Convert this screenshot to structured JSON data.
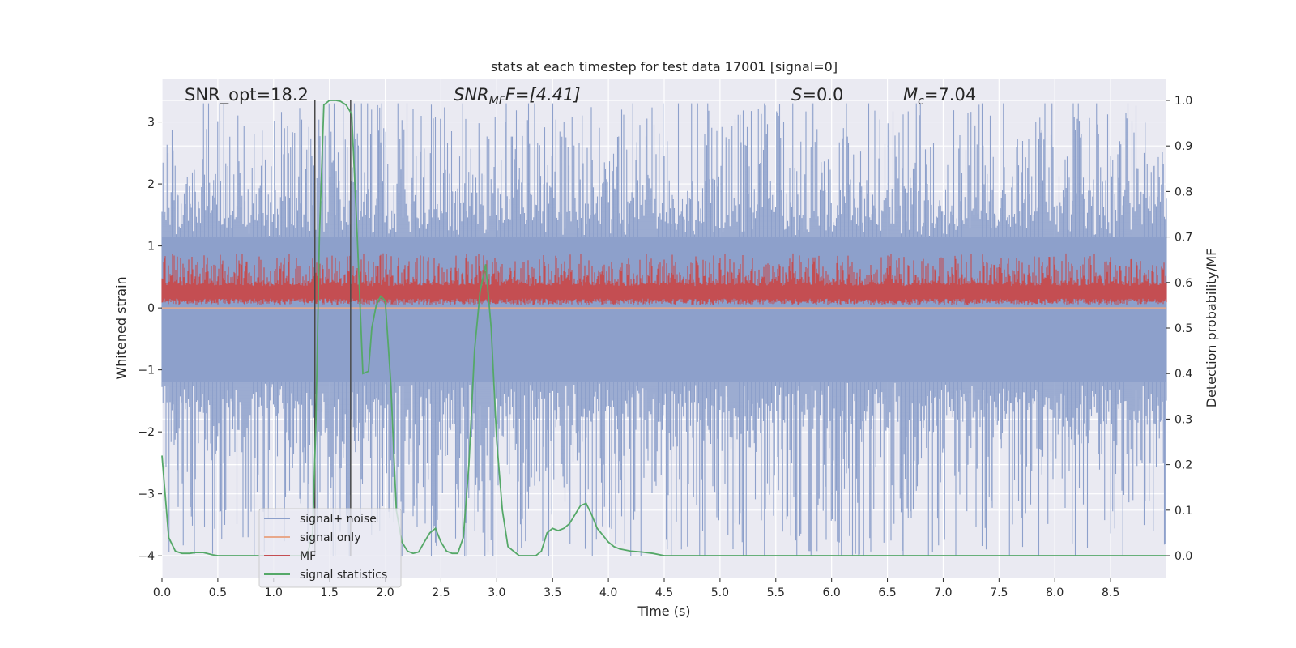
{
  "chart_data": {
    "type": "line",
    "title": "stats at each timestep for test data 17001 [signal=0]",
    "xlabel": "Time (s)",
    "ylabel": "Whitened strain",
    "y2label": "Detection probability/MF",
    "xlim": [
      0,
      9
    ],
    "ylim": [
      -4.35,
      3.7
    ],
    "y2lim": [
      -0.048,
      1.048
    ],
    "x_ticks": [
      "0.0",
      "0.5",
      "1.0",
      "1.5",
      "2.0",
      "2.5",
      "3.0",
      "3.5",
      "4.0",
      "4.5",
      "5.0",
      "5.5",
      "6.0",
      "6.5",
      "7.0",
      "7.5",
      "8.0",
      "8.5"
    ],
    "y_ticks": [
      "3",
      "2",
      "1",
      "0",
      "−1",
      "−2",
      "−3",
      "−4"
    ],
    "y2_ticks": [
      "1.0",
      "0.9",
      "0.8",
      "0.7",
      "0.6",
      "0.5",
      "0.4",
      "0.3",
      "0.2",
      "0.1",
      "0.0"
    ],
    "grid": true,
    "legend_position": "lower-left",
    "annotations": {
      "snr_opt": "SNR_opt=18.2",
      "snr_mf_main": "SNR",
      "snr_mf_sub": "MF",
      "snr_mf_rest": "F=[4.41]",
      "s_main": "S",
      "s_rest": "=0.0",
      "mc_main": "M",
      "mc_sub": "c",
      "mc_rest": "=7.04"
    },
    "vlines_x": [
      1.37,
      1.69
    ],
    "series": [
      {
        "name": "signal+ noise",
        "color": "#8da0cb",
        "axis": "left",
        "style": "noise band",
        "band_core": [
          -1.2,
          1.15
        ],
        "band_spikes": [
          -4.0,
          3.3
        ]
      },
      {
        "name": "signal only",
        "color": "#e8a88a",
        "axis": "left",
        "values_description_level": 0.0
      },
      {
        "name": "MF",
        "color": "#c44e52",
        "axis": "left",
        "style": "noise band",
        "band": [
          0.0,
          0.85
        ]
      },
      {
        "name": "signal statistics",
        "color": "#55a868",
        "axis": "right",
        "x": [
          0.0,
          0.06,
          0.12,
          0.18,
          0.25,
          0.3,
          0.37,
          0.45,
          0.5,
          0.6,
          0.8,
          1.0,
          1.2,
          1.3,
          1.35,
          1.38,
          1.41,
          1.45,
          1.5,
          1.56,
          1.6,
          1.65,
          1.7,
          1.75,
          1.8,
          1.85,
          1.88,
          1.92,
          1.96,
          2.0,
          2.05,
          2.1,
          2.15,
          2.2,
          2.25,
          2.3,
          2.35,
          2.4,
          2.45,
          2.5,
          2.55,
          2.6,
          2.65,
          2.7,
          2.75,
          2.8,
          2.85,
          2.9,
          2.95,
          3.0,
          3.05,
          3.1,
          3.15,
          3.2,
          3.25,
          3.35,
          3.4,
          3.45,
          3.5,
          3.55,
          3.6,
          3.65,
          3.7,
          3.75,
          3.8,
          3.85,
          3.9,
          3.95,
          4.0,
          4.05,
          4.1,
          4.2,
          4.3,
          4.4,
          4.5,
          5.0,
          6.0,
          7.0,
          8.0,
          9.0
        ],
        "values": [
          0.22,
          0.04,
          0.01,
          0.005,
          0.005,
          0.007,
          0.007,
          0.002,
          0.0,
          0.0,
          0.0,
          0.0,
          0.0,
          0.0,
          0.05,
          0.3,
          0.7,
          0.99,
          1.0,
          1.0,
          0.998,
          0.99,
          0.97,
          0.7,
          0.4,
          0.405,
          0.5,
          0.55,
          0.57,
          0.56,
          0.38,
          0.1,
          0.03,
          0.01,
          0.005,
          0.008,
          0.03,
          0.05,
          0.06,
          0.03,
          0.01,
          0.005,
          0.005,
          0.04,
          0.2,
          0.45,
          0.58,
          0.64,
          0.5,
          0.25,
          0.1,
          0.02,
          0.01,
          0.0,
          0.0,
          0.0,
          0.01,
          0.05,
          0.06,
          0.055,
          0.06,
          0.07,
          0.09,
          0.11,
          0.115,
          0.09,
          0.06,
          0.045,
          0.03,
          0.02,
          0.015,
          0.01,
          0.008,
          0.005,
          0.0,
          0.0,
          0.0,
          0.0,
          0.0,
          0.0
        ]
      }
    ]
  }
}
